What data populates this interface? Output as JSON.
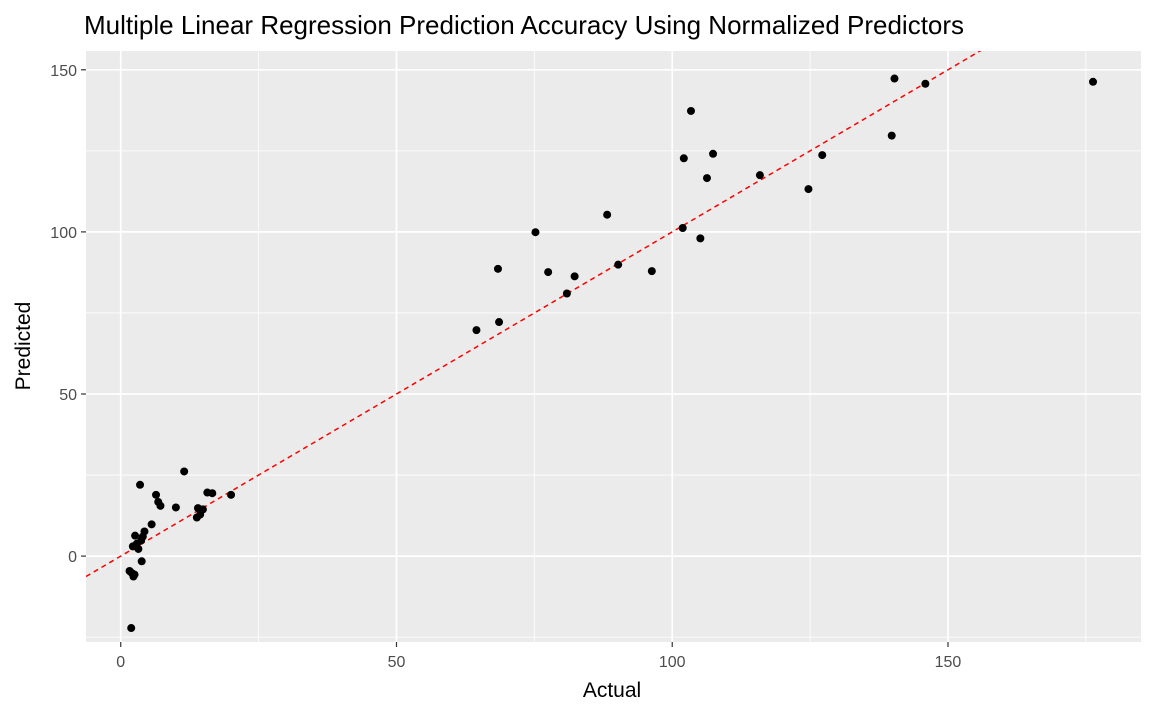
{
  "chart_data": {
    "type": "scatter",
    "title": "Multiple Linear Regression Prediction Accuracy Using Normalized Predictors",
    "xlabel": "Actual",
    "ylabel": "Predicted",
    "xlim": [
      -6.3,
      185
    ],
    "ylim": [
      -26.5,
      155.8
    ],
    "x_ticks": [
      0,
      50,
      100,
      150
    ],
    "x_tick_labels": [
      "0",
      "50",
      "100",
      "150"
    ],
    "y_ticks": [
      0,
      50,
      100,
      150
    ],
    "y_tick_labels": [
      "0",
      "50",
      "100",
      "150"
    ],
    "grid": true,
    "legend": "none",
    "colors": {
      "panel_background": "#ebebeb",
      "grid_major": "#ffffff",
      "points": "#000000",
      "reference_line": "#ff0000"
    },
    "reference_line": {
      "slope": 1,
      "intercept": 0,
      "style": "dashed"
    },
    "points": [
      {
        "x": 1.6,
        "y": -4.6
      },
      {
        "x": 1.9,
        "y": -22.2
      },
      {
        "x": 2.0,
        "y": -5.2
      },
      {
        "x": 2.2,
        "y": 3.0
      },
      {
        "x": 2.3,
        "y": -6.3
      },
      {
        "x": 2.5,
        "y": -5.7
      },
      {
        "x": 2.6,
        "y": 6.3
      },
      {
        "x": 2.9,
        "y": 3.8
      },
      {
        "x": 3.2,
        "y": 2.2
      },
      {
        "x": 3.5,
        "y": 22.0
      },
      {
        "x": 3.7,
        "y": 4.8
      },
      {
        "x": 3.8,
        "y": -1.6
      },
      {
        "x": 4.0,
        "y": 6.0
      },
      {
        "x": 4.3,
        "y": 7.6
      },
      {
        "x": 5.6,
        "y": 9.8
      },
      {
        "x": 6.4,
        "y": 18.9
      },
      {
        "x": 6.8,
        "y": 16.7
      },
      {
        "x": 7.2,
        "y": 15.5
      },
      {
        "x": 10.0,
        "y": 15.0
      },
      {
        "x": 11.5,
        "y": 26.1
      },
      {
        "x": 13.8,
        "y": 11.9
      },
      {
        "x": 14.0,
        "y": 14.8
      },
      {
        "x": 14.4,
        "y": 12.8
      },
      {
        "x": 14.9,
        "y": 14.4
      },
      {
        "x": 15.7,
        "y": 19.6
      },
      {
        "x": 16.6,
        "y": 19.4
      },
      {
        "x": 20.0,
        "y": 18.9
      },
      {
        "x": 64.5,
        "y": 69.7
      },
      {
        "x": 68.4,
        "y": 88.6
      },
      {
        "x": 68.6,
        "y": 72.2
      },
      {
        "x": 75.2,
        "y": 99.9
      },
      {
        "x": 77.5,
        "y": 87.6
      },
      {
        "x": 80.9,
        "y": 81.0
      },
      {
        "x": 82.3,
        "y": 86.3
      },
      {
        "x": 88.2,
        "y": 105.3
      },
      {
        "x": 90.2,
        "y": 89.9
      },
      {
        "x": 96.3,
        "y": 87.9
      },
      {
        "x": 101.9,
        "y": 101.2
      },
      {
        "x": 102.1,
        "y": 122.7
      },
      {
        "x": 103.4,
        "y": 137.3
      },
      {
        "x": 105.1,
        "y": 98.0
      },
      {
        "x": 106.3,
        "y": 116.6
      },
      {
        "x": 107.4,
        "y": 124.1
      },
      {
        "x": 115.9,
        "y": 117.5
      },
      {
        "x": 124.7,
        "y": 113.2
      },
      {
        "x": 127.2,
        "y": 123.7
      },
      {
        "x": 139.8,
        "y": 129.7
      },
      {
        "x": 140.3,
        "y": 147.3
      },
      {
        "x": 145.9,
        "y": 145.7
      },
      {
        "x": 176.3,
        "y": 146.3
      }
    ]
  }
}
